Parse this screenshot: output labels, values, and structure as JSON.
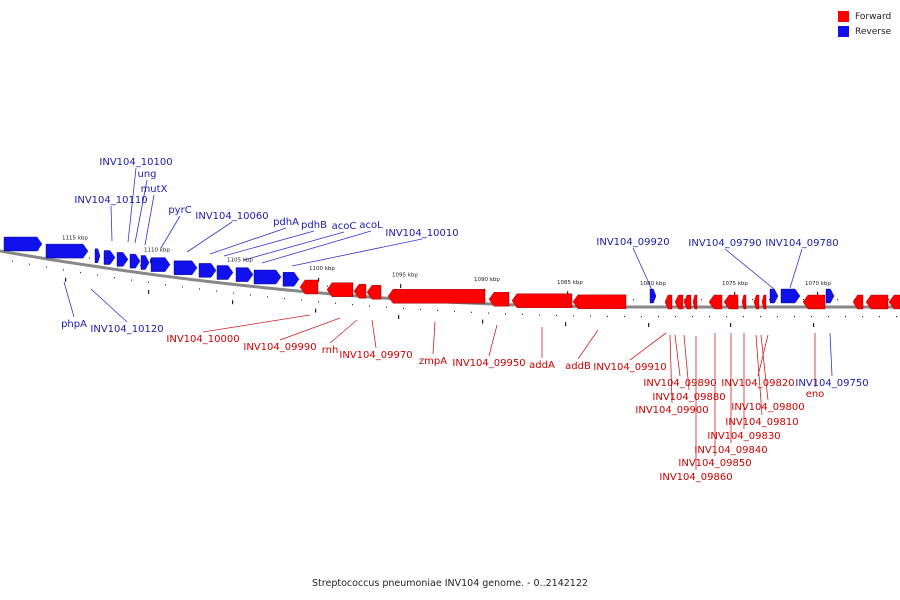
{
  "colors": {
    "forward": "#ff0000",
    "reverse": "#1111ee",
    "forward_label": "#cc0000",
    "reverse_label": "#1a1aaa",
    "backbone": "#888888"
  },
  "legend": {
    "forward_label": "Forward",
    "reverse_label": "Reverse"
  },
  "caption": "Streptococcus pneumoniae INV104 genome. - 0..2142122",
  "scale_labels": [
    "1115 kbp",
    "1110 kbp",
    "1105 kbp",
    "1100 kbp",
    "1095 kbp",
    "1090 kbp",
    "1085 kbp",
    "1080 kbp",
    "1075 kbp",
    "1070 kbp"
  ],
  "reverse_labels": [
    "INV104_10100",
    "ung",
    "mutX",
    "INV104_10110",
    "pyrC",
    "INV104_10060",
    "pdhA",
    "pdhB",
    "acoC",
    "acoL",
    "INV104_10010",
    "INV104_09920",
    "INV104_09790",
    "INV104_09780",
    "phpA",
    "INV104_10120",
    "INV104_09750"
  ],
  "forward_labels": [
    "INV104_10000",
    "INV104_09990",
    "rnh",
    "INV104_09970",
    "zmpA",
    "INV104_09950",
    "addA",
    "addB",
    "INV104_09910",
    "INV104_09890",
    "INV104_09880",
    "INV104_09900",
    "INV104_09820",
    "eno",
    "INV104_09800",
    "INV104_09810",
    "INV104_09830",
    "INV104_09840",
    "INV104_09850",
    "INV104_09860"
  ]
}
